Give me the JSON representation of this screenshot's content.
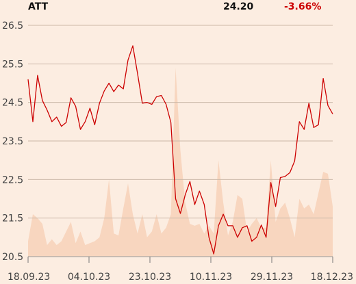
{
  "header": {
    "ticker": "ATT",
    "price": "24.20",
    "change": "-3.66%"
  },
  "colors": {
    "background": "#fcede1",
    "line": "#cc0000",
    "volume": "#f8d6bf",
    "grid": "#cbb8a8",
    "negative": "#cc0000"
  },
  "chart_data": {
    "type": "line",
    "title": "",
    "xlabel": "",
    "ylabel": "",
    "ylim": [
      20.5,
      26.5
    ],
    "yticks": [
      "26.5",
      "25.5",
      "24.5",
      "23.5",
      "22.5",
      "21.5",
      "20.5"
    ],
    "xtick_labels": [
      "18.09.23",
      "04.10.23",
      "23.10.23",
      "10.11.23",
      "29.11.23",
      "18.12.23"
    ],
    "grid": "horizontal",
    "series": [
      {
        "values": [
          25.1,
          24.0,
          25.2,
          24.55,
          24.3,
          24.0,
          24.12,
          23.88,
          23.98,
          24.62,
          24.4,
          23.8,
          24.0,
          24.35,
          23.92,
          24.48,
          24.8,
          25.0,
          24.78,
          24.95,
          24.85,
          25.6,
          25.97,
          25.25,
          24.48,
          24.5,
          24.45,
          24.65,
          24.68,
          24.45,
          23.98,
          22.0,
          21.62,
          22.1,
          22.45,
          21.85,
          22.2,
          21.85,
          21.0,
          20.57,
          21.3,
          21.6,
          21.3,
          21.3,
          21.0,
          21.25,
          21.3,
          20.9,
          21.0,
          21.32,
          21.0,
          22.42,
          21.8,
          22.55,
          22.58,
          22.68,
          22.98,
          24.0,
          23.8,
          24.48,
          23.85,
          23.92,
          25.12,
          24.42,
          24.2
        ]
      },
      {
        "type": "area",
        "values": [
          0.8,
          2.2,
          2.0,
          1.7,
          0.6,
          0.9,
          0.6,
          0.8,
          1.3,
          1.8,
          0.7,
          1.3,
          0.6,
          0.7,
          0.8,
          1.0,
          2.0,
          4.0,
          1.2,
          1.1,
          2.5,
          3.8,
          2.2,
          1.2,
          2.2,
          1.0,
          1.3,
          2.2,
          1.2,
          1.5,
          2.2,
          9.8,
          5.5,
          2.8,
          1.7,
          1.6,
          1.7,
          1.2,
          1.6,
          1.2,
          5.0,
          2.8,
          1.1,
          1.8,
          3.2,
          3.0,
          1.3,
          1.7,
          2.0,
          1.5,
          1.5,
          5.0,
          1.8,
          2.5,
          2.8,
          2.0,
          1.0,
          3.0,
          2.5,
          2.7,
          2.2,
          3.3,
          4.4,
          4.3,
          2.6
        ]
      }
    ]
  }
}
